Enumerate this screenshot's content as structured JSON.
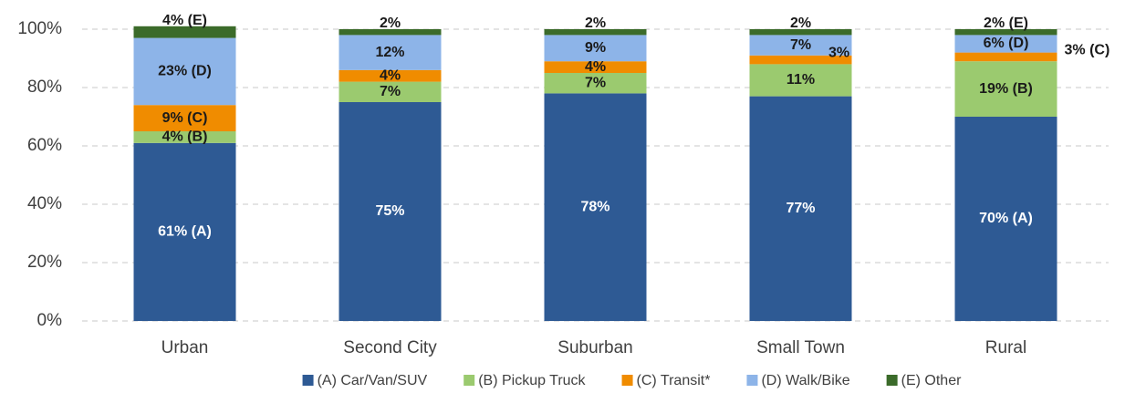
{
  "chart_data": {
    "type": "stacked_bar",
    "categories": [
      "Urban",
      "Second City",
      "Suburban",
      "Small Town",
      "Rural"
    ],
    "series": [
      {
        "name": "(A) Car/Van/SUV",
        "color": "#2e5a94",
        "values": [
          61,
          75,
          78,
          77,
          70
        ],
        "value_labels": [
          "61% (A)",
          "75%",
          "78%",
          "77%",
          "70% (A)"
        ]
      },
      {
        "name": "(B) Pickup Truck",
        "color": "#9bca6f",
        "values": [
          4,
          7,
          7,
          11,
          19
        ],
        "value_labels": [
          "4% (B)",
          "7%",
          "7%",
          "11%",
          "19% (B)"
        ]
      },
      {
        "name": "(C) Transit*",
        "color": "#f08c00",
        "values": [
          9,
          4,
          4,
          3,
          3
        ],
        "value_labels": [
          "9% (C)",
          "4%",
          "4%",
          "3%",
          "3% (C)"
        ]
      },
      {
        "name": "(D) Walk/Bike",
        "color": "#8db4e8",
        "values": [
          23,
          12,
          9,
          7,
          6
        ],
        "value_labels": [
          "23% (D)",
          "12%",
          "9%",
          "7%",
          "6% (D)"
        ]
      },
      {
        "name": "(E) Other",
        "color": "#3b6b2a",
        "values": [
          4,
          2,
          2,
          2,
          2
        ],
        "value_labels": [
          "4% (E)",
          "2%",
          "2%",
          "2%",
          "2% (E)"
        ]
      }
    ],
    "ylim": [
      0,
      100
    ],
    "yticks": [
      {
        "value": 0,
        "label": "0%"
      },
      {
        "value": 20,
        "label": "20%"
      },
      {
        "value": 40,
        "label": "40%"
      },
      {
        "value": 60,
        "label": "60%"
      },
      {
        "value": 80,
        "label": "80%"
      },
      {
        "value": 100,
        "label": "100%"
      }
    ],
    "grid": true,
    "legend": "bottom"
  }
}
